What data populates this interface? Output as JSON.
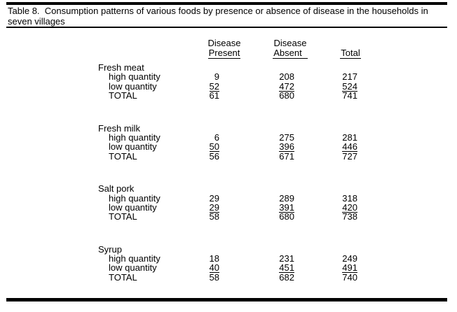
{
  "title": {
    "line1": "Table 8.  Consumption patterns of various foods by presence or absence of disease in the households in",
    "line2": "seven villages"
  },
  "header": {
    "col1": {
      "line1": "Disease",
      "line2": "Present"
    },
    "col2": {
      "line1": "Disease",
      "line2": "Absent"
    },
    "col3": {
      "label": "Total"
    }
  },
  "sections": [
    {
      "name": "Fresh meat",
      "rows": [
        {
          "label": "high quantity",
          "present": "9",
          "absent": "208",
          "total": "217"
        },
        {
          "label": "low quantity",
          "present": "52",
          "absent": "472",
          "total": "524"
        },
        {
          "label": "TOTAL",
          "present": "61",
          "absent": "680",
          "total": "741"
        }
      ]
    },
    {
      "name": "Fresh milk",
      "rows": [
        {
          "label": "high quantity",
          "present": "6",
          "absent": "275",
          "total": "281"
        },
        {
          "label": "low quantity",
          "present": "50",
          "absent": "396",
          "total": "446"
        },
        {
          "label": "TOTAL",
          "present": "56",
          "absent": "671",
          "total": "727"
        }
      ]
    },
    {
      "name": "Salt pork",
      "rows": [
        {
          "label": "high quantity",
          "present": "29",
          "absent": "289",
          "total": "318"
        },
        {
          "label": "low quantity",
          "present": "29",
          "absent": "391",
          "total": "420"
        },
        {
          "label": "TOTAL",
          "present": "58",
          "absent": "680",
          "total": "738"
        }
      ]
    },
    {
      "name": "Syrup",
      "rows": [
        {
          "label": "high quantity",
          "present": "18",
          "absent": "231",
          "total": "249"
        },
        {
          "label": "low quantity",
          "present": "40",
          "absent": "451",
          "total": "491"
        },
        {
          "label": "TOTAL",
          "present": "58",
          "absent": "682",
          "total": "740"
        }
      ]
    }
  ]
}
